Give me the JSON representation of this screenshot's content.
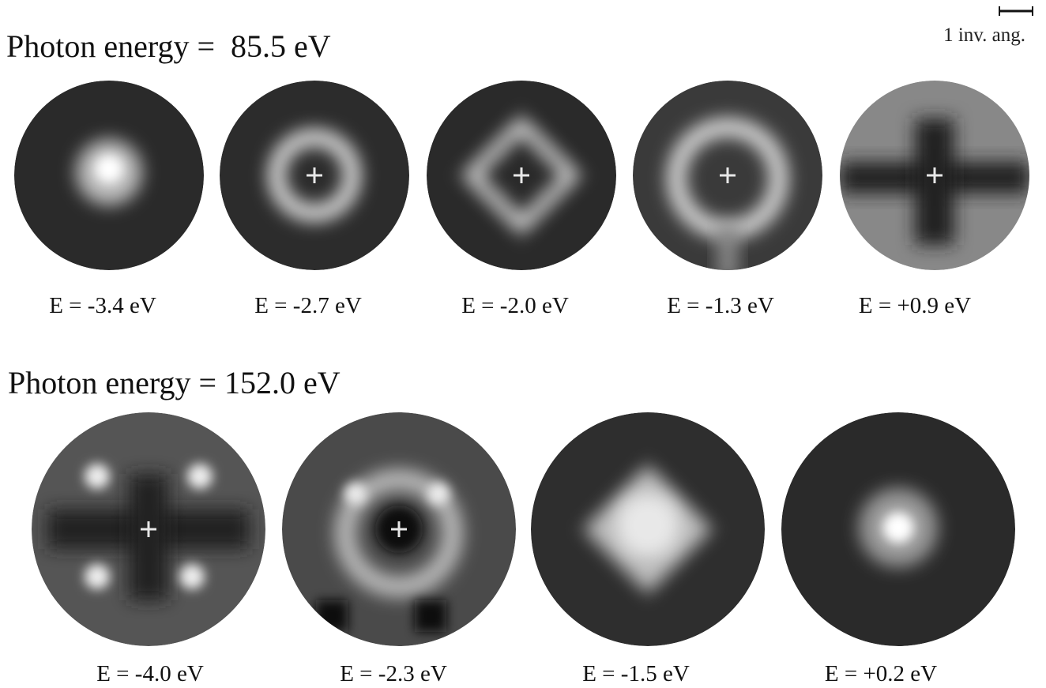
{
  "scale_bar": {
    "label": "1 inv. ang."
  },
  "rows": [
    {
      "title": "Photon energy =  85.5 eV",
      "panels": [
        {
          "label": "E = -3.4 eV"
        },
        {
          "label": "E = -2.7 eV"
        },
        {
          "label": "E = -2.0 eV"
        },
        {
          "label": "E = -1.3 eV"
        },
        {
          "label": "E = +0.9 eV"
        }
      ]
    },
    {
      "title": "Photon energy = 152.0 eV",
      "panels": [
        {
          "label": "E = -4.0 eV"
        },
        {
          "label": "E = -2.3 eV"
        },
        {
          "label": "E = -1.5 eV"
        },
        {
          "label": "E = +0.2 eV"
        }
      ]
    }
  ]
}
